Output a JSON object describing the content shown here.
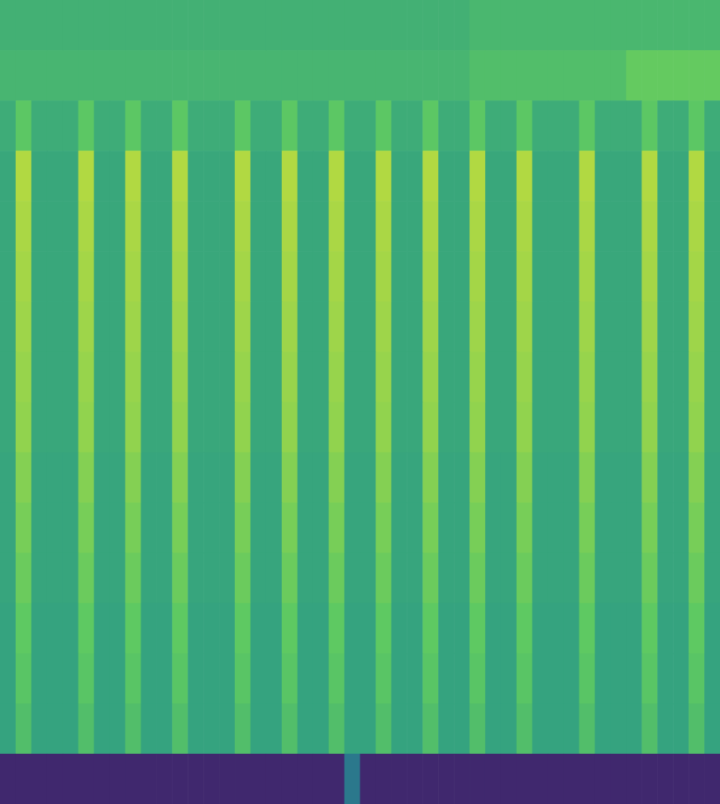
{
  "chart_data": {
    "type": "heatmap",
    "tick_labels": false,
    "color_range": [
      0,
      1
    ],
    "cells": [
      [
        0.64,
        0.64,
        0.64,
        0.64,
        0.64,
        0.64,
        0.64,
        0.64,
        0.64,
        0.64,
        0.64,
        0.64,
        0.64,
        0.64,
        0.64,
        0.64,
        0.64,
        0.64,
        0.64,
        0.64,
        0.64,
        0.64,
        0.64,
        0.64,
        0.64,
        0.64,
        0.64,
        0.64,
        0.64,
        0.64,
        0.67,
        0.67,
        0.67,
        0.67,
        0.67,
        0.67,
        0.67,
        0.67,
        0.67,
        0.67,
        0.67,
        0.67,
        0.67,
        0.67,
        0.67,
        0.67
      ],
      [
        0.66,
        0.66,
        0.66,
        0.66,
        0.66,
        0.66,
        0.66,
        0.66,
        0.66,
        0.66,
        0.66,
        0.66,
        0.66,
        0.66,
        0.66,
        0.66,
        0.66,
        0.66,
        0.66,
        0.66,
        0.66,
        0.66,
        0.66,
        0.66,
        0.66,
        0.66,
        0.66,
        0.66,
        0.66,
        0.66,
        0.7,
        0.7,
        0.7,
        0.7,
        0.7,
        0.7,
        0.7,
        0.7,
        0.7,
        0.7,
        0.76,
        0.76,
        0.76,
        0.76,
        0.76,
        0.76
      ],
      [
        0.62,
        0.74,
        0.62,
        0.62,
        0.62,
        0.74,
        0.62,
        0.62,
        0.74,
        0.62,
        0.62,
        0.74,
        0.62,
        0.62,
        0.62,
        0.74,
        0.62,
        0.62,
        0.74,
        0.62,
        0.62,
        0.74,
        0.62,
        0.62,
        0.74,
        0.62,
        0.62,
        0.74,
        0.62,
        0.62,
        0.74,
        0.62,
        0.62,
        0.74,
        0.62,
        0.62,
        0.62,
        0.74,
        0.62,
        0.62,
        0.62,
        0.74,
        0.62,
        0.62,
        0.74,
        0.62
      ],
      [
        0.6,
        0.88,
        0.6,
        0.6,
        0.6,
        0.88,
        0.6,
        0.6,
        0.88,
        0.6,
        0.6,
        0.88,
        0.6,
        0.6,
        0.6,
        0.88,
        0.6,
        0.6,
        0.88,
        0.6,
        0.6,
        0.88,
        0.6,
        0.6,
        0.88,
        0.6,
        0.6,
        0.88,
        0.6,
        0.6,
        0.88,
        0.6,
        0.6,
        0.88,
        0.6,
        0.6,
        0.6,
        0.88,
        0.6,
        0.6,
        0.6,
        0.88,
        0.6,
        0.6,
        0.88,
        0.6
      ],
      [
        0.6,
        0.87,
        0.6,
        0.6,
        0.6,
        0.87,
        0.6,
        0.6,
        0.87,
        0.6,
        0.6,
        0.87,
        0.6,
        0.6,
        0.6,
        0.87,
        0.6,
        0.6,
        0.87,
        0.6,
        0.6,
        0.87,
        0.6,
        0.6,
        0.87,
        0.6,
        0.6,
        0.87,
        0.6,
        0.6,
        0.87,
        0.6,
        0.6,
        0.87,
        0.6,
        0.6,
        0.6,
        0.87,
        0.6,
        0.6,
        0.6,
        0.87,
        0.6,
        0.6,
        0.87,
        0.6
      ],
      [
        0.6,
        0.86,
        0.6,
        0.6,
        0.6,
        0.86,
        0.6,
        0.6,
        0.86,
        0.6,
        0.6,
        0.86,
        0.6,
        0.6,
        0.6,
        0.86,
        0.6,
        0.6,
        0.86,
        0.6,
        0.6,
        0.86,
        0.6,
        0.6,
        0.86,
        0.6,
        0.6,
        0.86,
        0.6,
        0.6,
        0.86,
        0.6,
        0.6,
        0.86,
        0.6,
        0.6,
        0.6,
        0.86,
        0.6,
        0.6,
        0.6,
        0.86,
        0.6,
        0.6,
        0.86,
        0.6
      ],
      [
        0.6,
        0.85,
        0.6,
        0.6,
        0.6,
        0.85,
        0.6,
        0.6,
        0.85,
        0.6,
        0.6,
        0.85,
        0.6,
        0.6,
        0.6,
        0.85,
        0.6,
        0.6,
        0.85,
        0.6,
        0.6,
        0.85,
        0.6,
        0.6,
        0.85,
        0.6,
        0.6,
        0.85,
        0.6,
        0.6,
        0.85,
        0.6,
        0.6,
        0.85,
        0.6,
        0.6,
        0.6,
        0.85,
        0.6,
        0.6,
        0.6,
        0.85,
        0.6,
        0.6,
        0.85,
        0.6
      ],
      [
        0.6,
        0.84,
        0.6,
        0.6,
        0.6,
        0.84,
        0.6,
        0.6,
        0.84,
        0.6,
        0.6,
        0.84,
        0.6,
        0.6,
        0.6,
        0.84,
        0.6,
        0.6,
        0.84,
        0.6,
        0.6,
        0.84,
        0.6,
        0.6,
        0.84,
        0.6,
        0.6,
        0.84,
        0.6,
        0.6,
        0.84,
        0.6,
        0.6,
        0.84,
        0.6,
        0.6,
        0.6,
        0.84,
        0.6,
        0.6,
        0.6,
        0.84,
        0.6,
        0.6,
        0.84,
        0.6
      ],
      [
        0.6,
        0.83,
        0.6,
        0.6,
        0.6,
        0.83,
        0.6,
        0.6,
        0.83,
        0.6,
        0.6,
        0.83,
        0.6,
        0.6,
        0.6,
        0.83,
        0.6,
        0.6,
        0.83,
        0.6,
        0.6,
        0.83,
        0.6,
        0.6,
        0.83,
        0.6,
        0.6,
        0.83,
        0.6,
        0.6,
        0.83,
        0.6,
        0.6,
        0.83,
        0.6,
        0.6,
        0.6,
        0.83,
        0.6,
        0.6,
        0.6,
        0.83,
        0.6,
        0.6,
        0.83,
        0.6
      ],
      [
        0.59,
        0.81,
        0.59,
        0.59,
        0.59,
        0.81,
        0.59,
        0.59,
        0.81,
        0.59,
        0.59,
        0.81,
        0.59,
        0.59,
        0.59,
        0.81,
        0.59,
        0.59,
        0.81,
        0.59,
        0.59,
        0.81,
        0.59,
        0.59,
        0.81,
        0.59,
        0.59,
        0.81,
        0.59,
        0.59,
        0.81,
        0.59,
        0.59,
        0.81,
        0.59,
        0.59,
        0.59,
        0.81,
        0.59,
        0.59,
        0.59,
        0.81,
        0.59,
        0.59,
        0.81,
        0.59
      ],
      [
        0.59,
        0.79,
        0.59,
        0.59,
        0.59,
        0.79,
        0.59,
        0.59,
        0.79,
        0.59,
        0.59,
        0.79,
        0.59,
        0.59,
        0.59,
        0.79,
        0.59,
        0.59,
        0.79,
        0.59,
        0.59,
        0.79,
        0.59,
        0.59,
        0.79,
        0.59,
        0.59,
        0.79,
        0.59,
        0.59,
        0.79,
        0.59,
        0.59,
        0.79,
        0.59,
        0.59,
        0.59,
        0.79,
        0.59,
        0.59,
        0.59,
        0.79,
        0.59,
        0.59,
        0.79,
        0.59
      ],
      [
        0.59,
        0.77,
        0.59,
        0.59,
        0.59,
        0.77,
        0.59,
        0.59,
        0.77,
        0.59,
        0.59,
        0.77,
        0.59,
        0.59,
        0.59,
        0.77,
        0.59,
        0.59,
        0.77,
        0.59,
        0.59,
        0.77,
        0.59,
        0.59,
        0.77,
        0.59,
        0.59,
        0.77,
        0.59,
        0.59,
        0.77,
        0.59,
        0.59,
        0.77,
        0.59,
        0.59,
        0.59,
        0.77,
        0.59,
        0.59,
        0.59,
        0.77,
        0.59,
        0.59,
        0.77,
        0.59
      ],
      [
        0.58,
        0.75,
        0.58,
        0.58,
        0.58,
        0.75,
        0.58,
        0.58,
        0.75,
        0.58,
        0.58,
        0.75,
        0.58,
        0.58,
        0.58,
        0.75,
        0.58,
        0.58,
        0.75,
        0.58,
        0.58,
        0.75,
        0.58,
        0.58,
        0.75,
        0.58,
        0.58,
        0.75,
        0.58,
        0.58,
        0.75,
        0.58,
        0.58,
        0.75,
        0.58,
        0.58,
        0.58,
        0.75,
        0.58,
        0.58,
        0.58,
        0.75,
        0.58,
        0.58,
        0.75,
        0.58
      ],
      [
        0.58,
        0.73,
        0.58,
        0.58,
        0.58,
        0.73,
        0.58,
        0.58,
        0.73,
        0.58,
        0.58,
        0.73,
        0.58,
        0.58,
        0.58,
        0.73,
        0.58,
        0.58,
        0.73,
        0.58,
        0.58,
        0.73,
        0.58,
        0.58,
        0.73,
        0.58,
        0.58,
        0.73,
        0.58,
        0.58,
        0.73,
        0.58,
        0.58,
        0.73,
        0.58,
        0.58,
        0.58,
        0.73,
        0.58,
        0.58,
        0.58,
        0.73,
        0.58,
        0.58,
        0.73,
        0.58
      ],
      [
        0.58,
        0.7,
        0.58,
        0.58,
        0.58,
        0.7,
        0.58,
        0.58,
        0.7,
        0.58,
        0.58,
        0.7,
        0.58,
        0.58,
        0.58,
        0.7,
        0.58,
        0.58,
        0.7,
        0.58,
        0.58,
        0.7,
        0.58,
        0.58,
        0.7,
        0.58,
        0.58,
        0.7,
        0.58,
        0.58,
        0.7,
        0.58,
        0.58,
        0.7,
        0.58,
        0.58,
        0.58,
        0.7,
        0.58,
        0.58,
        0.58,
        0.7,
        0.58,
        0.58,
        0.7,
        0.58
      ],
      [
        0.12,
        0.12,
        0.12,
        0.12,
        0.12,
        0.12,
        0.12,
        0.12,
        0.12,
        0.12,
        0.12,
        0.12,
        0.12,
        0.12,
        0.12,
        0.12,
        0.12,
        0.12,
        0.12,
        0.12,
        0.12,
        0.12,
        0.4,
        0.12,
        0.12,
        0.12,
        0.12,
        0.12,
        0.12,
        0.12,
        0.12,
        0.12,
        0.12,
        0.12,
        0.12,
        0.12,
        0.12,
        0.12,
        0.12,
        0.12,
        0.12,
        0.12,
        0.12,
        0.12,
        0.12,
        0.12
      ]
    ]
  }
}
